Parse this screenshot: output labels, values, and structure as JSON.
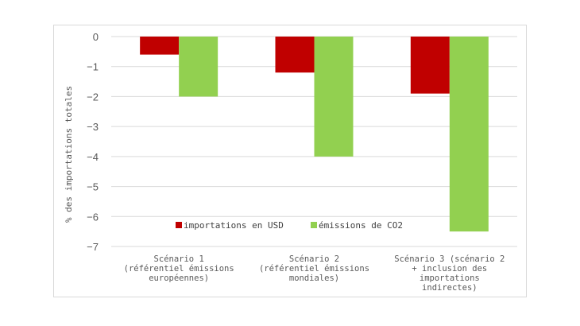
{
  "chart_data": {
    "type": "bar",
    "title": "",
    "xlabel": "",
    "ylabel": "% des importations totales",
    "ylim": [
      -7,
      0
    ],
    "yticks": [
      0,
      -1,
      -2,
      -3,
      -4,
      -5,
      -6,
      -7
    ],
    "grid": true,
    "legend_position": "bottom-center",
    "categories": [
      [
        "Scénario 1",
        "(référentiel émissions",
        "européennes)"
      ],
      [
        "Scénario 2",
        "(référentiel émissions",
        "mondiales)"
      ],
      [
        "Scénario 3 (scénario 2",
        "+ inclusion des",
        "importations",
        "indirectes)"
      ]
    ],
    "series": [
      {
        "name": "importations en USD",
        "color": "#c00000",
        "values": [
          -0.6,
          -1.2,
          -1.9
        ]
      },
      {
        "name": "émissions de CO2",
        "color": "#92d050",
        "values": [
          -2.0,
          -4.0,
          -6.5
        ]
      }
    ]
  }
}
